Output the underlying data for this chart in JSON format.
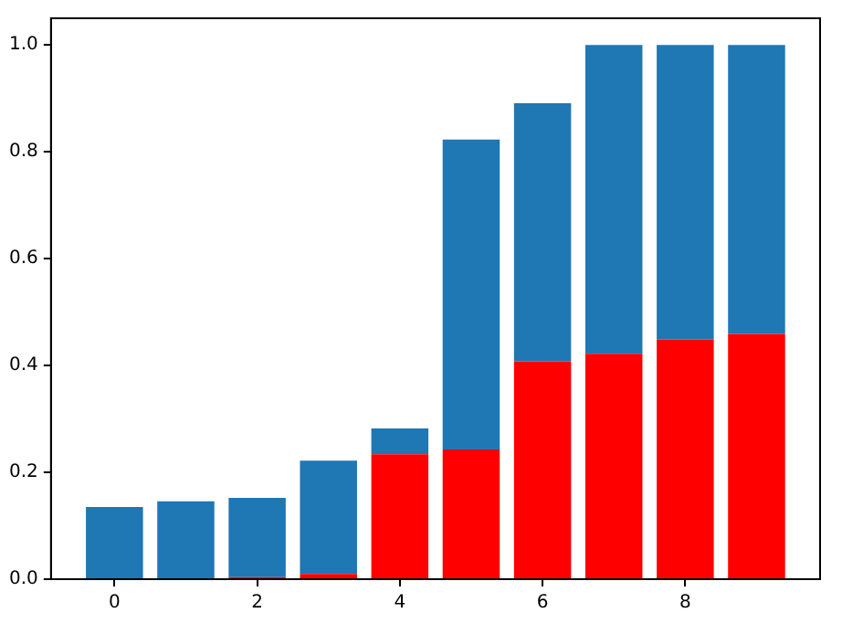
{
  "chart_data": {
    "type": "bar",
    "stacked": true,
    "x": [
      0,
      1,
      2,
      3,
      4,
      5,
      6,
      7,
      8,
      9
    ],
    "series": [
      {
        "color": "#ff0000",
        "values": [
          0,
          0,
          0.004,
          0.01,
          0.234,
          0.243,
          0.408,
          0.422,
          0.449,
          0.459
        ]
      },
      {
        "color": "#1f77b4",
        "values": [
          0.135,
          0.146,
          0.148,
          0.212,
          0.048,
          0.58,
          0.483,
          0.578,
          0.551,
          0.541
        ]
      }
    ],
    "xlim": [
      -0.89,
      9.89
    ],
    "xticks": [
      0,
      2,
      4,
      6,
      8
    ],
    "ylim": [
      0,
      1.05
    ],
    "yticks": [
      {
        "value": 0,
        "label": "0.0"
      },
      {
        "value": 0.2,
        "label": "0.2"
      },
      {
        "value": 0.4,
        "label": "0.4"
      },
      {
        "value": 0.6,
        "label": "0.6"
      },
      {
        "value": 0.8,
        "label": "0.8"
      },
      {
        "value": 1.0,
        "label": "1.0"
      }
    ],
    "grid": false,
    "legend": false
  }
}
